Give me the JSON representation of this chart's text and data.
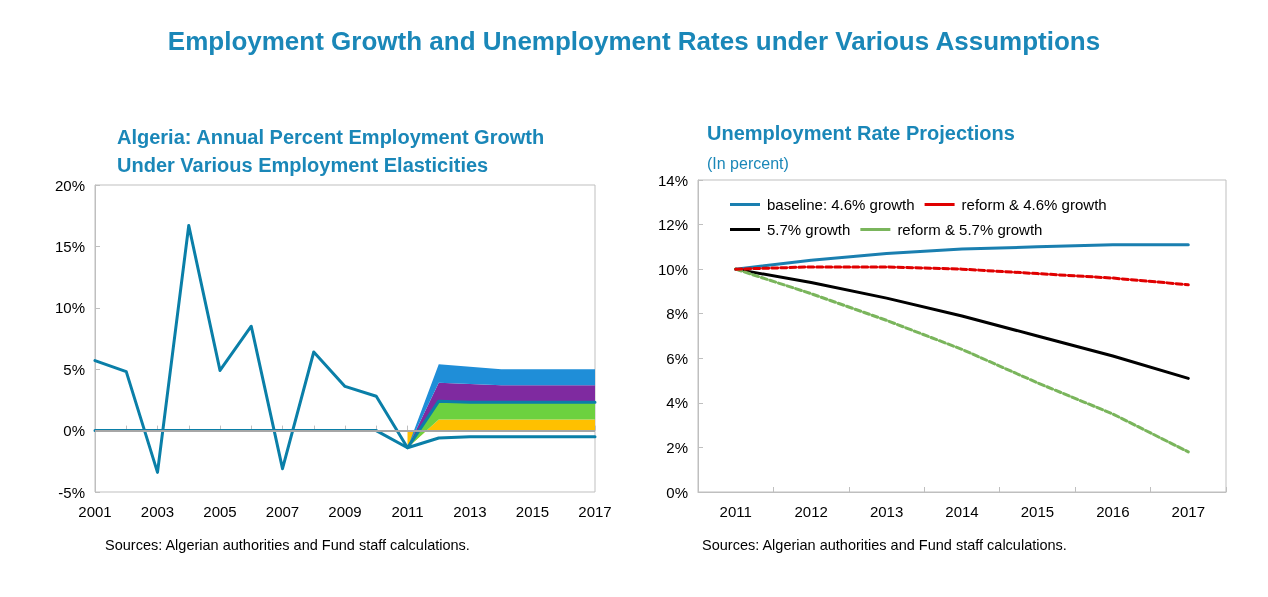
{
  "chart_data": [
    {
      "type": "other",
      "title": "Employment Growth and Unemployment Rates under Various Assumptions"
    },
    {
      "type": "line",
      "title": "Algeria: Annual Percent Employment Growth Under Various Employment Elasticities",
      "categories": [
        "2001",
        null,
        "2003",
        null,
        "2005",
        null,
        "2007",
        null,
        "2009",
        null,
        "2011",
        null,
        "2013",
        null,
        "2015",
        null,
        "2017"
      ],
      "ylim": [
        -5,
        20
      ],
      "yticks": [
        {
          "value": -5,
          "label": "-5%"
        },
        {
          "value": 0,
          "label": "0%"
        },
        {
          "value": 5,
          "label": "5%"
        },
        {
          "value": 10,
          "label": "10%"
        },
        {
          "value": 15,
          "label": "15%"
        },
        {
          "value": 20,
          "label": "20%"
        }
      ],
      "stacked": true,
      "grid": false,
      "marker": "none",
      "ref_lines": [
        {
          "axis": "y",
          "value": 0,
          "color": "#a6a6a6"
        }
      ],
      "series": [
        {
          "type": "line",
          "color": "#0a7fa8",
          "values": [
            0,
            0,
            0,
            0,
            0,
            0,
            0,
            0,
            0,
            0,
            -1.4,
            -0.6,
            -0.5,
            -0.5,
            -0.5,
            -0.5,
            -0.5
          ]
        },
        {
          "type": "area",
          "color": "#ffc000",
          "values": [
            null,
            null,
            null,
            null,
            null,
            null,
            null,
            null,
            null,
            null,
            -1.4,
            0.9,
            0.9,
            0.9,
            0.9,
            0.9,
            0.9
          ]
        },
        {
          "type": "area",
          "color": "#6dd13f",
          "values": [
            null,
            null,
            null,
            null,
            null,
            null,
            null,
            null,
            null,
            null,
            0,
            1.5,
            1.4,
            1.4,
            1.4,
            1.4,
            1.4
          ]
        },
        {
          "type": "area",
          "color": "#7f2aa0",
          "values": [
            null,
            null,
            null,
            null,
            null,
            null,
            null,
            null,
            null,
            null,
            0,
            1.5,
            1.5,
            1.4,
            1.4,
            1.4,
            1.4
          ]
        },
        {
          "type": "area",
          "color": "#1f8ed8",
          "values": [
            null,
            null,
            null,
            null,
            null,
            null,
            null,
            null,
            null,
            null,
            0,
            1.5,
            1.4,
            1.3,
            1.3,
            1.3,
            1.3
          ]
        },
        {
          "type": "line",
          "color": "#0a7fa8",
          "values": [
            5.7,
            4.8,
            -3.4,
            16.7,
            4.9,
            8.5,
            -3.1,
            6.4,
            3.6,
            2.8,
            -1.4,
            2.4,
            2.3,
            2.3,
            2.3,
            2.3,
            2.3
          ]
        }
      ],
      "annotations": [
        "Sources: Algerian authorities and Fund staff calculations."
      ]
    },
    {
      "type": "line",
      "title": "Unemployment Rate Projections",
      "subtitle": "(In percent)",
      "categories": [
        "2011",
        "2012",
        "2013",
        "2014",
        "2015",
        "2016",
        "2017"
      ],
      "ylim": [
        0,
        14
      ],
      "yticks": [
        {
          "value": 0,
          "label": "0%"
        },
        {
          "value": 2,
          "label": "2%"
        },
        {
          "value": 4,
          "label": "4%"
        },
        {
          "value": 6,
          "label": "6%"
        },
        {
          "value": 8,
          "label": "8%"
        },
        {
          "value": 10,
          "label": "10%"
        },
        {
          "value": 12,
          "label": "12%"
        },
        {
          "value": 14,
          "label": "14%"
        }
      ],
      "grid": false,
      "marker": "none",
      "legend": "top",
      "series": [
        {
          "name": "baseline: 4.6% growth",
          "color": "#1a7fb0",
          "line_style": "solid",
          "values": [
            10,
            10.4,
            10.7,
            10.9,
            11.0,
            11.1,
            11.1
          ]
        },
        {
          "name": "reform & 4.6% growth",
          "color": "#e00000",
          "line_style": "dashed",
          "values": [
            10,
            10.1,
            10.1,
            10,
            9.8,
            9.6,
            9.3
          ]
        },
        {
          "name": "5.7% growth",
          "color": "#000000",
          "line_style": "solid",
          "values": [
            10,
            9.4,
            8.7,
            7.9,
            7.0,
            6.1,
            5.1
          ]
        },
        {
          "name": "reform & 5.7% growth",
          "color": "#7ab55c",
          "line_style": "dashed",
          "values": [
            10,
            8.9,
            7.7,
            6.4,
            4.9,
            3.5,
            1.8
          ]
        }
      ],
      "annotations": [
        "Sources: Algerian authorities and Fund staff calculations."
      ]
    }
  ]
}
